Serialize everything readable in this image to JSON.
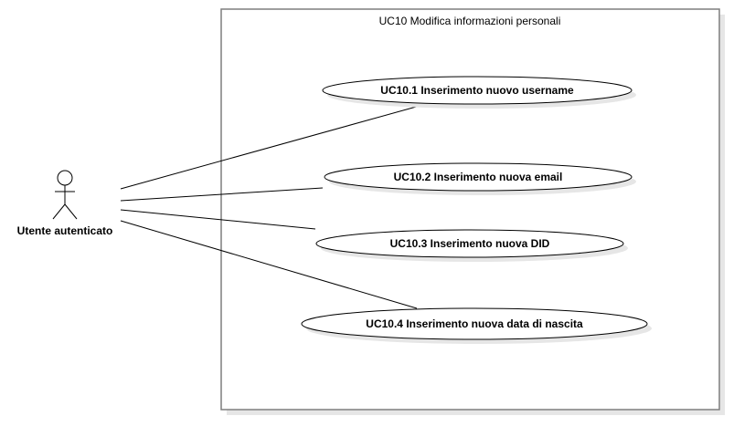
{
  "system_boundary": {
    "title": "UC10 Modifica informazioni personali"
  },
  "actor": {
    "name": "Utente autenticato",
    "icon": "stick-figure-icon"
  },
  "use_cases": [
    {
      "id": "uc10-1",
      "label": "UC10.1 Inserimento nuovo username"
    },
    {
      "id": "uc10-2",
      "label": "UC10.2 Inserimento nuova email"
    },
    {
      "id": "uc10-3",
      "label": "UC10.3 Inserimento nuova DID"
    },
    {
      "id": "uc10-4",
      "label": "UC10.4 Inserimento nuova data di nascita"
    }
  ],
  "associations": [
    {
      "from": "actor",
      "to": "uc10-1"
    },
    {
      "from": "actor",
      "to": "uc10-2"
    },
    {
      "from": "actor",
      "to": "uc10-3"
    },
    {
      "from": "actor",
      "to": "uc10-4"
    }
  ],
  "colors": {
    "stroke": "#000000",
    "boundary_stroke": "#7f7f7f",
    "shadow": "#e6e6e6",
    "fill": "#ffffff"
  }
}
